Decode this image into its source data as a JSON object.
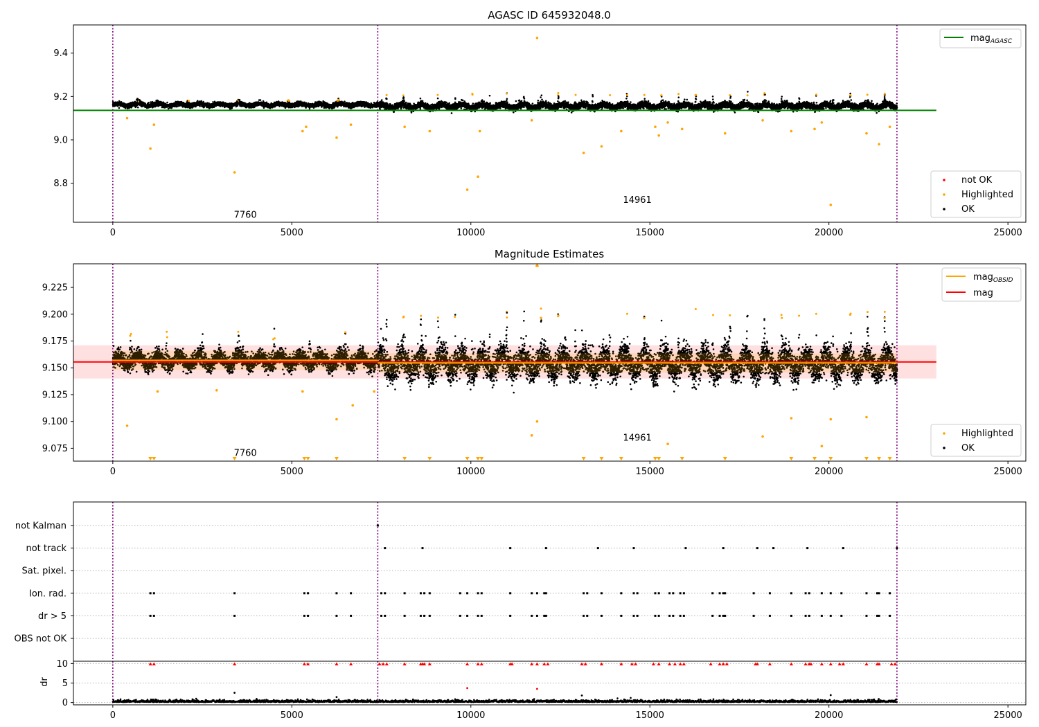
{
  "chart_data": [
    {
      "type": "scatter",
      "title": "AGASC ID 645932048.0",
      "xlim": [
        -1100,
        25500
      ],
      "ylim": [
        8.62,
        9.53
      ],
      "xticks": [
        0,
        5000,
        10000,
        15000,
        20000,
        25000
      ],
      "yticks": [
        8.8,
        9.0,
        9.2,
        9.4
      ],
      "ytick_labels": [
        "8.8",
        "9.0",
        "9.2",
        "9.4"
      ],
      "vlines_x": [
        0,
        7400,
        21900
      ],
      "hline": {
        "name": "mag_AGASC",
        "y": 9.136,
        "x_range": [
          -1100,
          23000
        ],
        "color": "#008000"
      },
      "segments": [
        {
          "name": "7760",
          "x_range": [
            0,
            7400
          ],
          "center": 9.162,
          "spread": 0.009,
          "burst_every": 1400,
          "burst_height": 0.02
        },
        {
          "name": "14961",
          "x_range": [
            7400,
            21900
          ],
          "center": 9.156,
          "spread": 0.013,
          "burst_every": 480,
          "burst_height": 0.055
        }
      ],
      "annotations": [
        {
          "text": "7760",
          "x": 3700,
          "y": 8.64
        },
        {
          "text": "14961",
          "x": 14650,
          "y": 8.71
        }
      ],
      "highlighted_points": [
        [
          1050,
          8.96
        ],
        [
          1150,
          9.07
        ],
        [
          3400,
          8.85
        ],
        [
          5300,
          9.04
        ],
        [
          5400,
          9.06
        ],
        [
          6250,
          9.01
        ],
        [
          6650,
          9.07
        ],
        [
          400,
          9.1
        ],
        [
          8150,
          9.06
        ],
        [
          8850,
          9.04
        ],
        [
          10250,
          9.04
        ],
        [
          9900,
          8.77
        ],
        [
          10200,
          8.83
        ],
        [
          11850,
          9.47
        ],
        [
          11700,
          9.09
        ],
        [
          13150,
          8.94
        ],
        [
          13650,
          8.97
        ],
        [
          14200,
          9.04
        ],
        [
          15150,
          9.06
        ],
        [
          15250,
          9.02
        ],
        [
          15500,
          9.08
        ],
        [
          15900,
          9.05
        ],
        [
          17100,
          9.03
        ],
        [
          18150,
          9.09
        ],
        [
          18950,
          9.04
        ],
        [
          19600,
          9.05
        ],
        [
          19800,
          9.08
        ],
        [
          20050,
          8.7
        ],
        [
          21050,
          9.03
        ],
        [
          21400,
          8.98
        ],
        [
          21700,
          9.06
        ]
      ],
      "legend": [
        {
          "label": "not OK",
          "color": "#ff0000"
        },
        {
          "label": "Highlighted",
          "color": "#ffa500"
        },
        {
          "label": "OK",
          "color": "#000000"
        }
      ],
      "legend_line_label": "mag",
      "legend_line_sub": "AGASC"
    },
    {
      "type": "scatter",
      "title": "Magnitude Estimates",
      "xlim": [
        -1100,
        25500
      ],
      "ylim": [
        9.063,
        9.247
      ],
      "xticks": [
        0,
        5000,
        10000,
        15000,
        20000,
        25000
      ],
      "yticks": [
        9.075,
        9.1,
        9.125,
        9.15,
        9.175,
        9.2,
        9.225
      ],
      "ytick_labels": [
        "9.075",
        "9.100",
        "9.125",
        "9.150",
        "9.175",
        "9.200",
        "9.225"
      ],
      "vlines_x": [
        0,
        7400,
        21900
      ],
      "hline": {
        "name": "mag",
        "y": 9.1555,
        "x_range": [
          -1100,
          23000
        ],
        "color": "#ff0000"
      },
      "band": {
        "y_range": [
          9.14,
          9.171
        ],
        "x_range": [
          -1100,
          23000
        ]
      },
      "obsid_lines": [
        {
          "x_range": [
            0,
            7400
          ],
          "y": 9.157
        },
        {
          "x_range": [
            7400,
            21900
          ],
          "y": 9.1545
        }
      ],
      "segments": [
        {
          "name": "7760",
          "x_range": [
            0,
            7400
          ],
          "center": 9.157,
          "spread": 0.007,
          "burst_every": 1000,
          "burst_height": 0.025
        },
        {
          "name": "14961",
          "x_range": [
            7400,
            21900
          ],
          "center": 9.154,
          "spread": 0.012,
          "burst_every": 480,
          "burst_height": 0.048
        }
      ],
      "annotations": [
        {
          "text": "7760",
          "x": 3700,
          "y": 9.068
        },
        {
          "text": "14961",
          "x": 14650,
          "y": 9.082
        }
      ],
      "highlighted_points": [
        [
          400,
          9.096
        ],
        [
          1250,
          9.128
        ],
        [
          2900,
          9.129
        ],
        [
          5300,
          9.128
        ],
        [
          6250,
          9.102
        ],
        [
          6700,
          9.115
        ],
        [
          7300,
          9.128
        ],
        [
          11700,
          9.087
        ],
        [
          11850,
          9.1
        ],
        [
          15500,
          9.079
        ],
        [
          18150,
          9.086
        ],
        [
          18950,
          9.103
        ],
        [
          19800,
          9.077
        ],
        [
          20050,
          9.102
        ],
        [
          21050,
          9.104
        ],
        [
          11850,
          9.245
        ]
      ],
      "clipped_x": [
        1050,
        1150,
        3400,
        5350,
        5450,
        6250,
        8150,
        8850,
        9900,
        10200,
        10300,
        13150,
        13650,
        14200,
        15150,
        15250,
        15900,
        17100,
        18950,
        19600,
        20050,
        21050,
        21400,
        21700
      ],
      "legend": [
        {
          "label": "Highlighted",
          "color": "#ffa500"
        },
        {
          "label": "OK",
          "color": "#000000"
        }
      ],
      "legend_obsid_label": "mag",
      "legend_obsid_sub": "OBSID",
      "legend_mag_label": "mag"
    },
    {
      "type": "scatter",
      "title": "",
      "xlim": [
        -1100,
        25500
      ],
      "categories": [
        "OBS not OK",
        "dr > 5",
        "Ion. rad.",
        "Sat. pixel.",
        "not track",
        "not Kalman"
      ],
      "vlines_x": [
        0,
        7400,
        21900
      ],
      "flags": {
        "not Kalman": [
          7400
        ],
        "not track": [
          7600,
          8650,
          11100,
          12100,
          13550,
          14550,
          16000,
          17050,
          18000,
          18450,
          19400,
          20400,
          21900
        ],
        "Ion. rad.": [
          1050,
          1150,
          3400,
          5350,
          5450,
          6250,
          6650,
          7500,
          7600,
          8150,
          8600,
          8700,
          8850,
          9700,
          9900,
          10200,
          10300,
          11100,
          11700,
          11850,
          12050,
          12100,
          13150,
          13250,
          13650,
          14200,
          14550,
          14650,
          15150,
          15250,
          15550,
          15650,
          15850,
          15950,
          16750,
          16950,
          17050,
          17100,
          17900,
          18350,
          18950,
          19350,
          19450,
          19800,
          20050,
          20350,
          21050,
          21350,
          21400,
          21700
        ],
        "dr > 5": [
          1050,
          1150,
          3400,
          5350,
          5450,
          6250,
          6650,
          7500,
          7600,
          8150,
          8600,
          8700,
          8850,
          9700,
          9900,
          10200,
          10300,
          11100,
          11700,
          11850,
          12050,
          12100,
          13150,
          13250,
          13650,
          14200,
          14550,
          14650,
          15150,
          15250,
          15550,
          15650,
          15850,
          15950,
          16750,
          16950,
          17050,
          17100,
          17900,
          18350,
          18950,
          19350,
          19450,
          19800,
          20050,
          20350,
          21050,
          21350,
          21400,
          21700
        ]
      }
    },
    {
      "type": "scatter",
      "title": "",
      "ylabel": "dr",
      "xlim": [
        -1100,
        25500
      ],
      "ylim": [
        -0.6,
        10.6
      ],
      "xticks": [
        0,
        5000,
        10000,
        15000,
        20000,
        25000
      ],
      "yticks": [
        0,
        5,
        10
      ],
      "vlines_x": [
        0,
        7400,
        21900
      ],
      "clipped_x": [
        1050,
        1150,
        3400,
        5350,
        5450,
        6250,
        6650,
        7450,
        7550,
        7650,
        8150,
        8600,
        8650,
        8700,
        8850,
        9900,
        10200,
        10300,
        11100,
        11150,
        11700,
        11850,
        12050,
        12150,
        13100,
        13200,
        13650,
        14200,
        14500,
        14600,
        15100,
        15250,
        15550,
        15700,
        15850,
        15950,
        16700,
        16950,
        17050,
        17150,
        17950,
        18000,
        18350,
        18950,
        19350,
        19450,
        19500,
        19800,
        20050,
        20300,
        20400,
        21050,
        21350,
        21400,
        21750,
        21850
      ],
      "outliers": [
        [
          3400,
          2.5
        ],
        [
          9900,
          3.7
        ],
        [
          11850,
          3.5
        ],
        [
          13100,
          1.8
        ],
        [
          20050,
          1.9
        ],
        [
          6250,
          1.4
        ]
      ]
    }
  ]
}
